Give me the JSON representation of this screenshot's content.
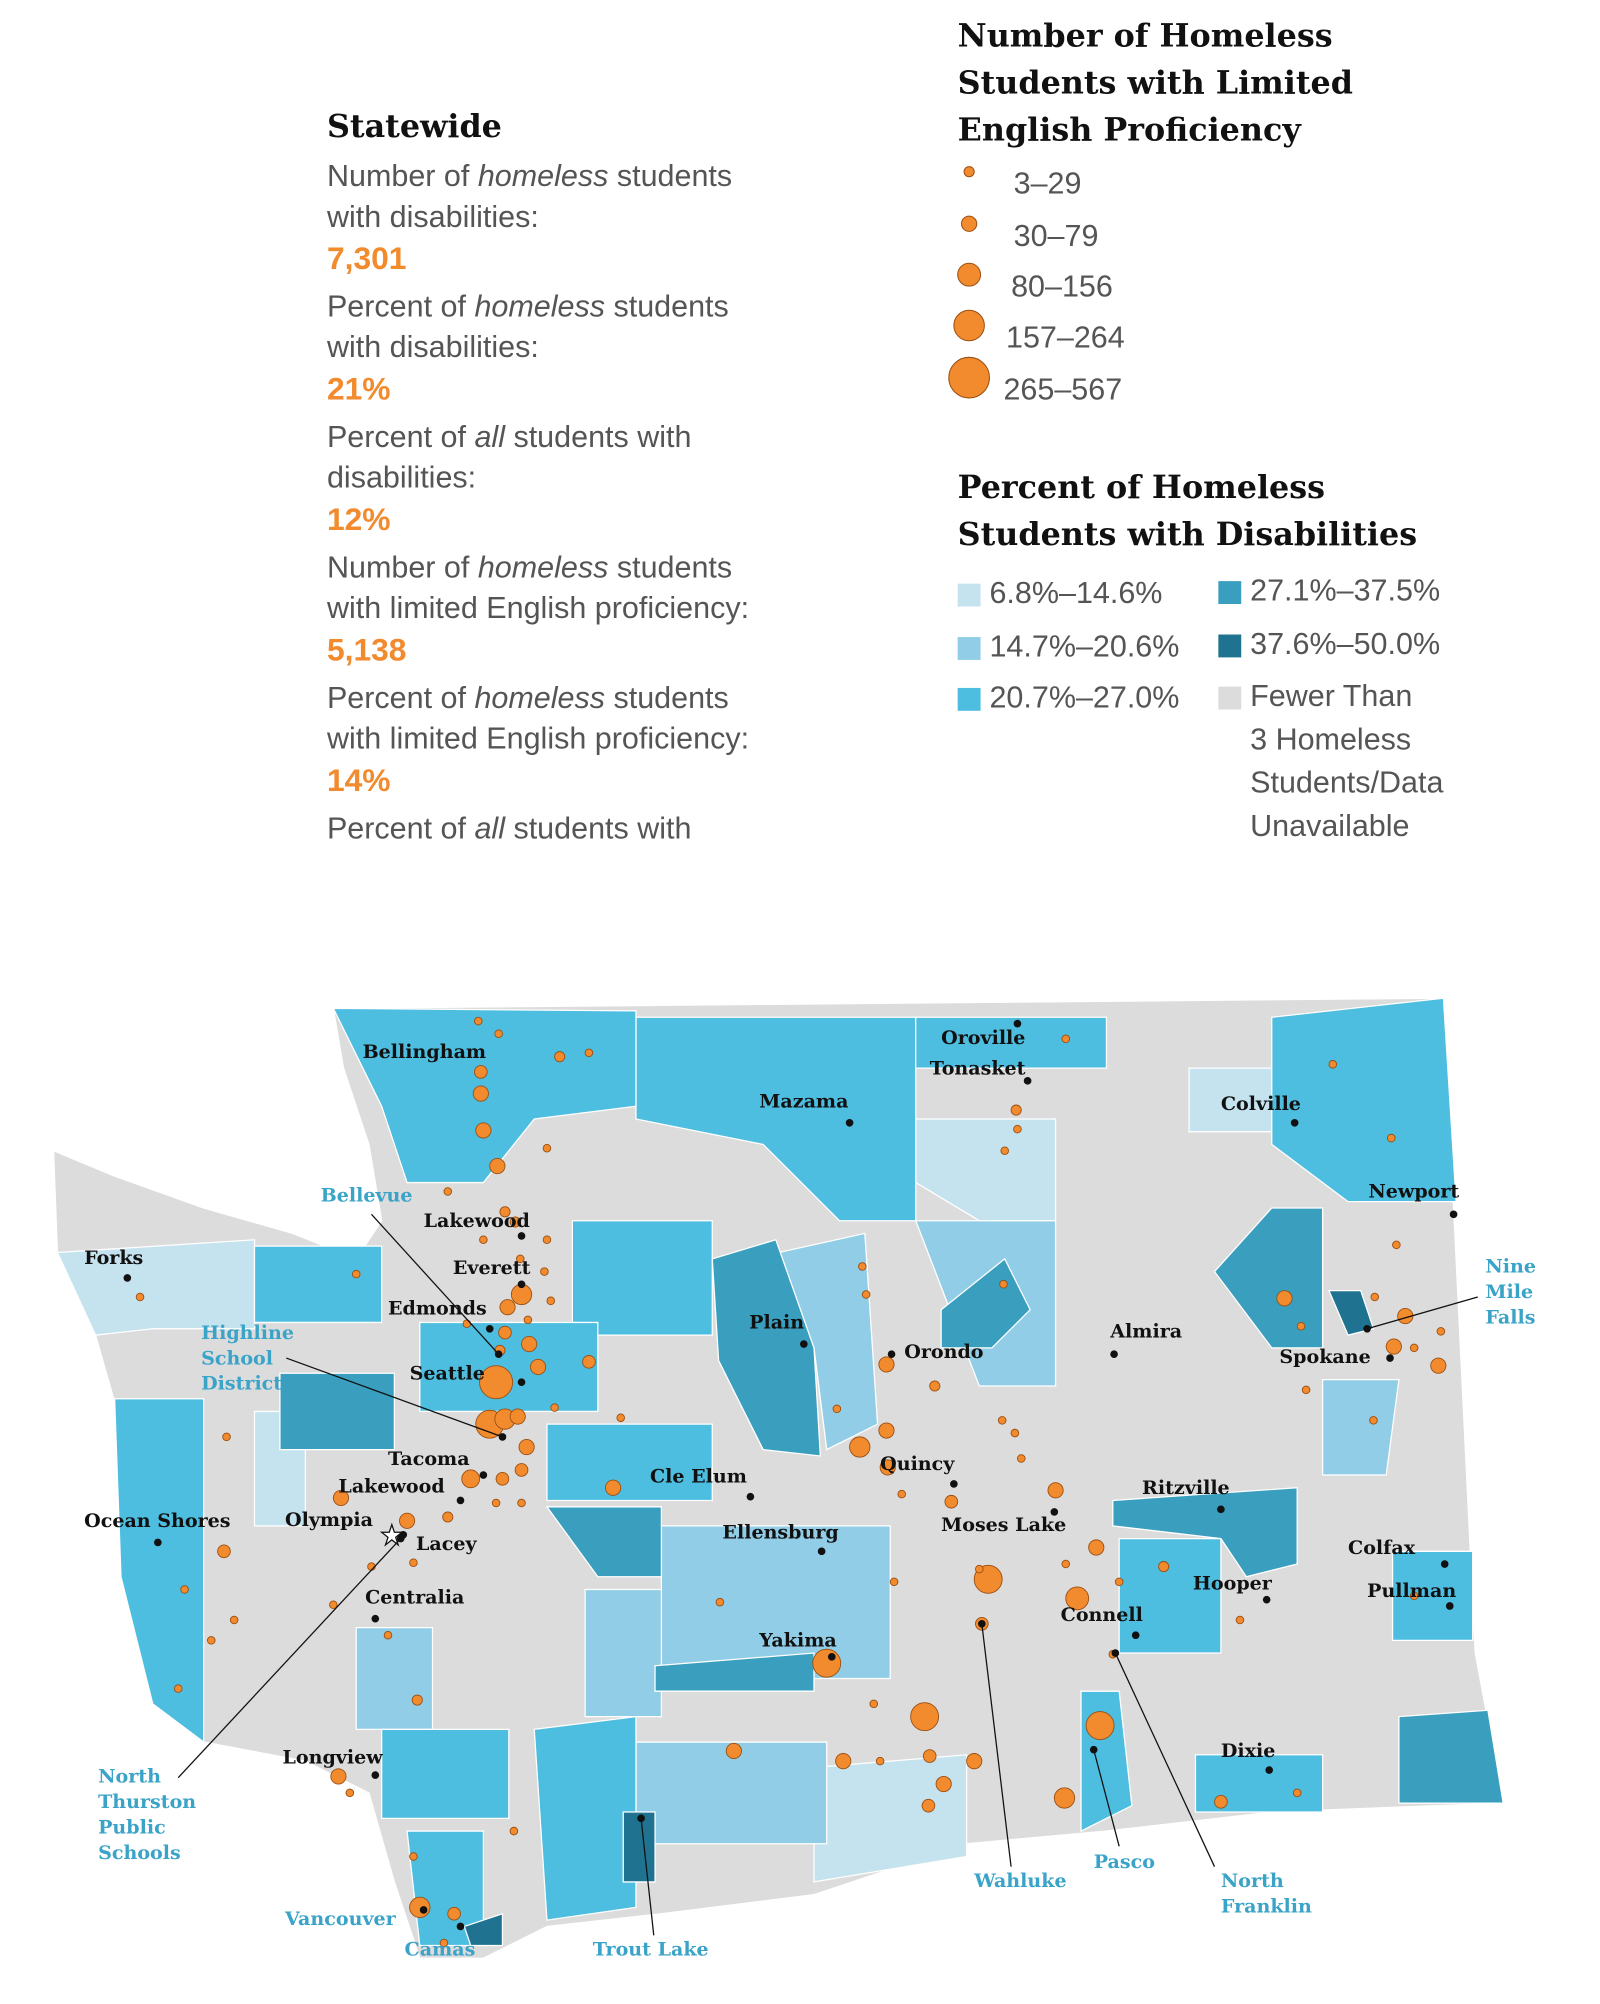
{
  "statewide": {
    "title": "Statewide",
    "items": [
      {
        "line1": [
          "Number of ",
          "homeless",
          " students"
        ],
        "line2": "with disabilities:",
        "value": "7,301"
      },
      {
        "line1": [
          "Percent of ",
          "homeless",
          " students"
        ],
        "line2": "with disabilities:",
        "value": "21%"
      },
      {
        "line1": [
          "Percent of ",
          "all",
          " students with"
        ],
        "line2": "disabilities:",
        "value": "12%"
      },
      {
        "line1": [
          "Number of ",
          "homeless",
          " students"
        ],
        "line2": "with limited English proficiency:",
        "value": "5,138"
      },
      {
        "line1": [
          "Percent of ",
          "homeless",
          " students"
        ],
        "line2": "with limited English proficiency:",
        "value": "14%"
      },
      {
        "line1": [
          "Percent of ",
          "all",
          " students with"
        ]
      }
    ]
  },
  "size_legend": {
    "title": [
      "Number of Homeless",
      "Students with Limited",
      "English Proficiency"
    ],
    "color": "#f28a2e",
    "labels": [
      "3–29",
      "30–79",
      "80–156",
      "157–264",
      "265–567"
    ]
  },
  "color_legend": {
    "title": [
      "Percent of Homeless",
      "Students with Disabilities"
    ],
    "items": [
      {
        "label": [
          "6.8%–14.6%"
        ],
        "color": "#c5e3ef"
      },
      {
        "label": [
          "14.7%–20.6%"
        ],
        "color": "#91cde6"
      },
      {
        "label": [
          "20.7%–27.0%"
        ],
        "color": "#4dbde0"
      },
      {
        "label": [
          "27.1%–37.5%"
        ],
        "color": "#3a9fbf"
      },
      {
        "label": [
          "37.6%–50.0%"
        ],
        "color": "#1f7390"
      },
      {
        "label": [
          "Fewer Than",
          "3 Homeless",
          "Students/Data",
          "Unavailable"
        ],
        "color": "#dcdcdc"
      }
    ]
  },
  "map": {
    "cities": [
      "Bellingham",
      "Oroville",
      "Tonasket",
      "Mazama",
      "Colville",
      "Newport",
      "Forks",
      "Lakewood",
      "Everett",
      "Edmonds",
      "Plain",
      "Orondo",
      "Almira",
      "Spokane",
      "Seattle",
      "Tacoma",
      "Lakewood",
      "Quincy",
      "Cle Elum",
      "Ritzville",
      "Moses Lake",
      "Olympia",
      "Lacey",
      "Ocean Shores",
      "Ellensburg",
      "Colfax",
      "Hooper",
      "Centralia",
      "Pullman",
      "Connell",
      "Yakima",
      "Longview",
      "Dixie"
    ],
    "callouts": [
      [
        "Bellevue"
      ],
      [
        "Highline",
        "School",
        "District"
      ],
      [
        "Nine",
        "Mile",
        "Falls"
      ],
      [
        "North",
        "Thurston",
        "Public",
        "Schools"
      ],
      [
        "Vancouver"
      ],
      [
        "Camas"
      ],
      [
        "Trout Lake"
      ],
      [
        "Wahluke"
      ],
      [
        "Pasco"
      ],
      [
        "North",
        "Franklin"
      ]
    ]
  }
}
